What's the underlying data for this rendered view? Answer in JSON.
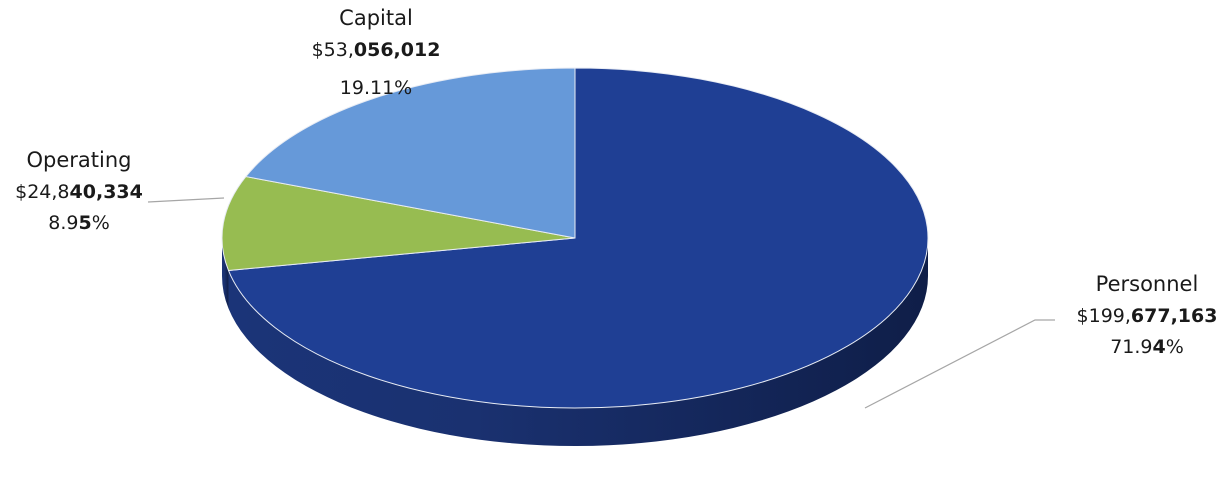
{
  "chart_data": {
    "type": "pie",
    "title": "",
    "slices": [
      {
        "name": "Personnel",
        "value": 199677163,
        "percent": 71.94,
        "value_text": {
          "normal": "$199,",
          "bold": "677,163"
        },
        "percent_text": {
          "normal": "71.9",
          "bold": "4",
          "tail": "%"
        },
        "color": "#1F3F94"
      },
      {
        "name": "Operating",
        "value": 24840334,
        "percent": 8.95,
        "value_text": {
          "normal": "$24,8",
          "bold": "40,334"
        },
        "percent_text": {
          "normal": "8.9",
          "bold": "5",
          "tail": "%"
        },
        "color": "#97BC51"
      },
      {
        "name": "Capital",
        "value": 53056012,
        "percent": 19.11,
        "value_text": {
          "normal": "$53,",
          "bold": "056,012"
        },
        "percent_text": {
          "normal": "19.11%",
          "bold": "",
          "tail": ""
        },
        "color": "#6699D9"
      }
    ],
    "legend": "none",
    "data_labels": "outside with leader lines"
  }
}
